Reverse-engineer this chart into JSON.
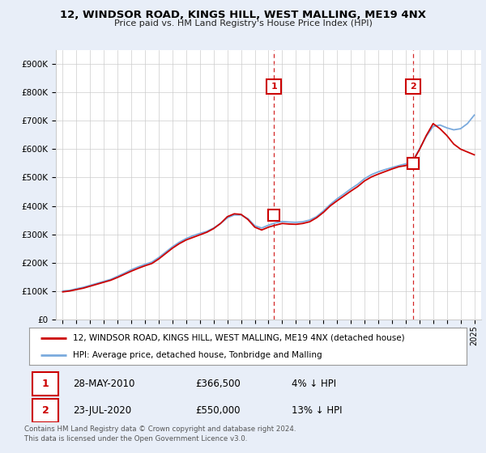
{
  "title": "12, WINDSOR ROAD, KINGS HILL, WEST MALLING, ME19 4NX",
  "subtitle": "Price paid vs. HM Land Registry's House Price Index (HPI)",
  "background_color": "#e8eef8",
  "plot_bg_color": "#ffffff",
  "red_line_color": "#cc0000",
  "blue_line_color": "#7aaadd",
  "sale1_x": 2010.4,
  "sale1_y_marker": 820000,
  "sale1_y_dot": 366500,
  "sale1_label": "1",
  "sale2_x": 2020.55,
  "sale2_y_marker": 820000,
  "sale2_y_dot": 550000,
  "sale2_label": "2",
  "yticks": [
    0,
    100000,
    200000,
    300000,
    400000,
    500000,
    600000,
    700000,
    800000,
    900000
  ],
  "ytick_labels": [
    "£0",
    "£100K",
    "£200K",
    "£300K",
    "£400K",
    "£500K",
    "£600K",
    "£700K",
    "£800K",
    "£900K"
  ],
  "xmin": 1994.5,
  "xmax": 2025.5,
  "ymin": 0,
  "ymax": 950000,
  "legend_line1": "12, WINDSOR ROAD, KINGS HILL, WEST MALLING, ME19 4NX (detached house)",
  "legend_line2": "HPI: Average price, detached house, Tonbridge and Malling",
  "annotation1_num": "1",
  "annotation1_date": "28-MAY-2010",
  "annotation1_price": "£366,500",
  "annotation1_hpi": "4% ↓ HPI",
  "annotation2_num": "2",
  "annotation2_date": "23-JUL-2020",
  "annotation2_price": "£550,000",
  "annotation2_hpi": "13% ↓ HPI",
  "footer": "Contains HM Land Registry data © Crown copyright and database right 2024.\nThis data is licensed under the Open Government Licence v3.0."
}
